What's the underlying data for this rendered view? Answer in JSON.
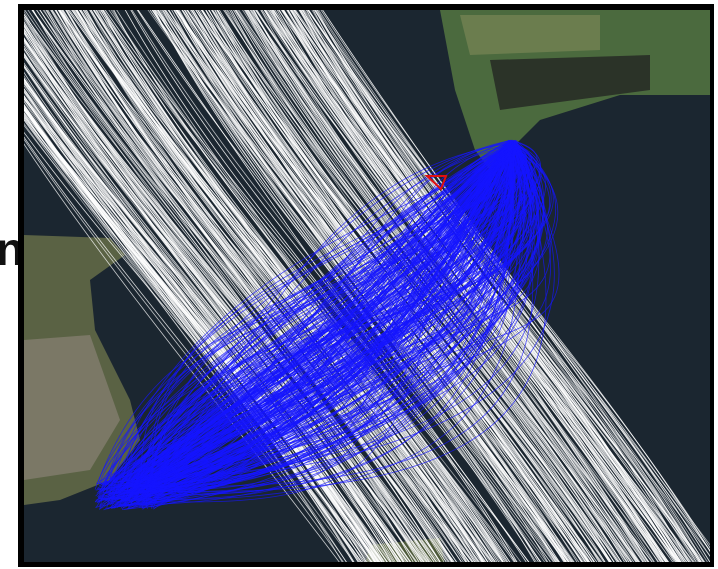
{
  "edge_text": "n"
}
